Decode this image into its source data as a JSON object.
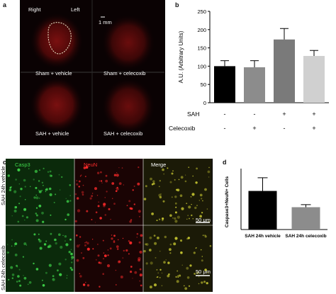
{
  "panel_a": {
    "label": "a",
    "right_label": "Right",
    "left_label": "Left",
    "scale_text": "1 mm",
    "captions": [
      "Sham + vehicle",
      "Sham + celecoxib",
      "SAH + vehicle",
      "SAH + celecoxib"
    ]
  },
  "panel_c": {
    "label": "c",
    "channels": [
      "Casp3",
      "NeuN",
      "Merge"
    ],
    "rows": [
      "SAH 24h vehicle",
      "SAH 24h celecoxib"
    ],
    "scale_bar_label": "50 μm",
    "colors": {
      "casp3": "#3fd64a",
      "neun": "#ff2b2b",
      "merge": "#c8c832"
    }
  },
  "chart_data": [
    {
      "panel": "b",
      "type": "bar",
      "ylabel": "A.U. (Arbitrary Units)",
      "ylim": [
        0,
        250
      ],
      "yticks": [
        0,
        50,
        100,
        150,
        200,
        250
      ],
      "row_labels": [
        "SAH",
        "Celecoxib"
      ],
      "conditions": [
        [
          "-",
          "-"
        ],
        [
          "-",
          "+"
        ],
        [
          "+",
          "-"
        ],
        [
          "+",
          "+"
        ]
      ],
      "values": [
        100,
        97,
        173,
        128
      ],
      "errors": [
        15,
        18,
        30,
        15
      ],
      "colors": [
        "#000000",
        "#8c8c8c",
        "#7a7a7a",
        "#d0d0d0"
      ]
    },
    {
      "panel": "d",
      "type": "bar",
      "ylabel": "Caspase3+NeuN+ Cells",
      "categories": [
        "SAH 24h vehicle",
        "SAH 24h celecoxib"
      ],
      "values": [
        38,
        22
      ],
      "errors": [
        13,
        2.5
      ],
      "ylim": [
        0,
        60
      ],
      "colors": [
        "#000000",
        "#8c8c8c"
      ]
    }
  ]
}
